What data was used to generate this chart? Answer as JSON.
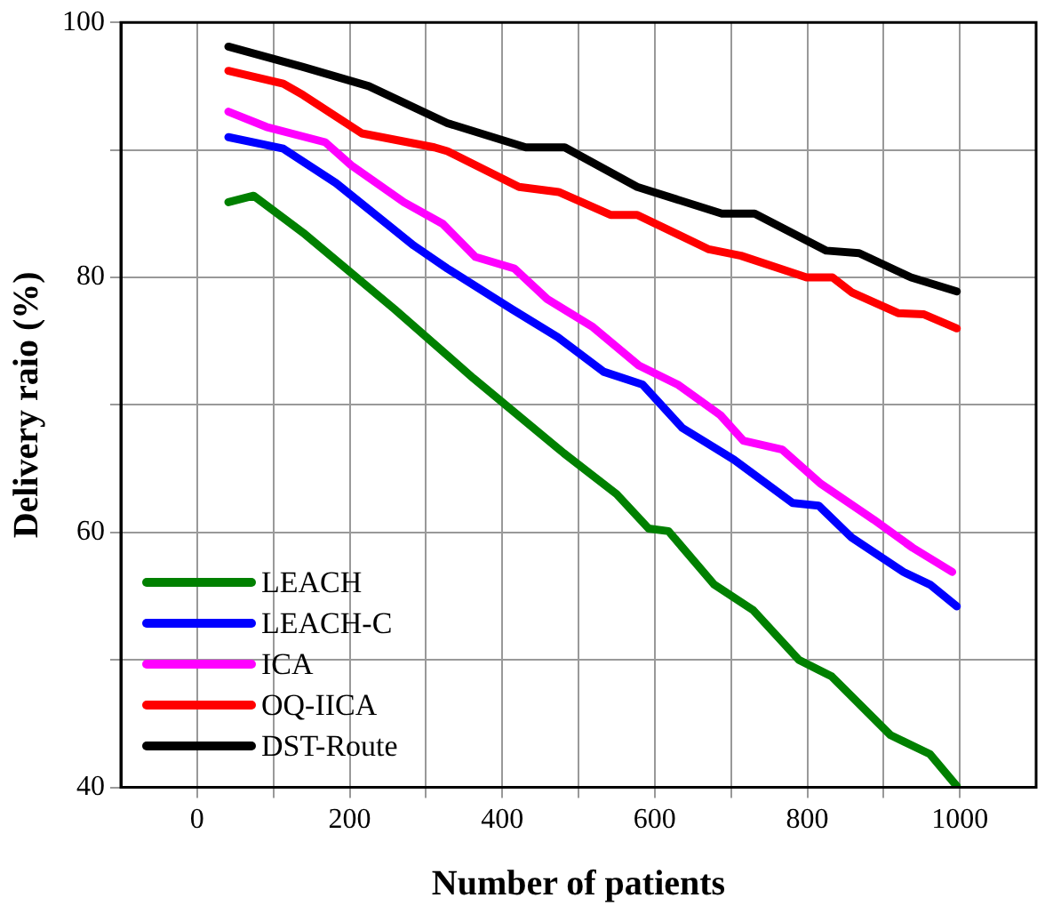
{
  "chart_data": {
    "type": "line",
    "xlabel": "Number of patients",
    "ylabel": "Delivery raio (%)",
    "xlim": [
      -100,
      1100
    ],
    "ylim": [
      40,
      100
    ],
    "xticks": [
      0,
      {
        "value": 100,
        "label": null
      },
      200,
      {
        "value": 300,
        "label": null
      },
      400,
      {
        "value": 500,
        "label": null
      },
      600,
      {
        "value": 700,
        "label": null
      },
      800,
      {
        "value": 900,
        "label": null
      },
      1000
    ],
    "yticks": [
      40,
      {
        "value": 50,
        "label": null
      },
      60,
      {
        "value": 70,
        "label": null
      },
      80,
      {
        "value": 90,
        "label": null
      },
      100
    ],
    "grid": true,
    "legend": "left",
    "marker": "none",
    "line_style": "solid",
    "series": [
      {
        "name": "LEACH",
        "color": "#008000",
        "x": [
          41,
          74,
          139,
          259,
          362,
          481,
          550,
          592,
          618,
          678,
          729,
          789,
          832,
          909,
          961,
          996
        ],
        "values": [
          85.9,
          86.4,
          83.5,
          77.5,
          72.1,
          66.2,
          63.0,
          60.3,
          60.1,
          55.9,
          53.9,
          50.0,
          48.7,
          44.1,
          42.6,
          40.1
        ]
      },
      {
        "name": "LEACH-C",
        "color": "#0000ff",
        "x": [
          41,
          113,
          182,
          284,
          328,
          413,
          473,
          533,
          584,
          636,
          704,
          781,
          815,
          858,
          926,
          961,
          996
        ],
        "values": [
          91.0,
          90.1,
          87.4,
          82.5,
          80.7,
          77.5,
          75.3,
          72.6,
          71.6,
          68.2,
          65.7,
          62.3,
          62.1,
          59.6,
          56.9,
          55.9,
          54.2
        ]
      },
      {
        "name": "ICA",
        "color": "#ff00ff",
        "x": [
          41,
          91,
          168,
          202,
          271,
          322,
          365,
          416,
          459,
          519,
          579,
          630,
          686,
          716,
          767,
          818,
          887,
          938,
          990
        ],
        "values": [
          93.0,
          91.8,
          90.6,
          88.8,
          85.9,
          84.2,
          81.6,
          80.7,
          78.3,
          76.1,
          73.1,
          71.6,
          69.2,
          67.2,
          66.5,
          63.8,
          61.0,
          58.8,
          56.9
        ]
      },
      {
        "name": "OQ-IICA",
        "color": "#ff0000",
        "x": [
          41,
          113,
          139,
          216,
          311,
          328,
          422,
          474,
          542,
          577,
          671,
          713,
          799,
          833,
          859,
          919,
          953,
          996
        ],
        "values": [
          96.2,
          95.2,
          94.3,
          91.3,
          90.2,
          89.9,
          87.1,
          86.7,
          84.9,
          84.9,
          82.2,
          81.7,
          80.0,
          80.0,
          78.8,
          77.2,
          77.1,
          76.0
        ]
      },
      {
        "name": "DST-Route",
        "color": "#000000",
        "x": [
          41,
          139,
          225,
          328,
          431,
          482,
          577,
          688,
          731,
          825,
          868,
          936,
          996
        ],
        "values": [
          98.1,
          96.5,
          95.0,
          92.1,
          90.2,
          90.2,
          87.1,
          85.0,
          85.0,
          82.1,
          81.9,
          80.0,
          78.9
        ]
      }
    ]
  }
}
